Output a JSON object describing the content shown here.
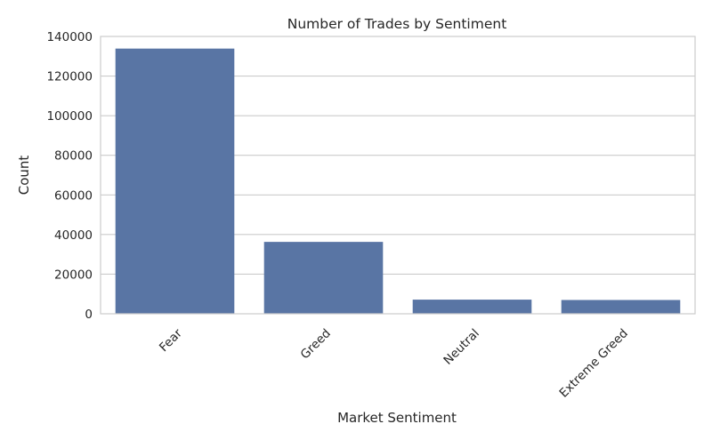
{
  "chart_data": {
    "type": "bar",
    "title": "Number of Trades by Sentiment",
    "xlabel": "Market Sentiment",
    "ylabel": "Count",
    "categories": [
      "Fear",
      "Greed",
      "Neutral",
      "Extreme Greed"
    ],
    "values": [
      133871,
      36289,
      7141,
      6962
    ],
    "ylim": [
      0,
      140000
    ],
    "yticks": [
      0,
      20000,
      40000,
      60000,
      80000,
      100000,
      120000,
      140000
    ],
    "xtick_rotation": 45,
    "grid": "horizontal",
    "bar_color": "#5975a4",
    "grid_color": "#cccccc",
    "axes_edge_color": "#cccccc"
  }
}
